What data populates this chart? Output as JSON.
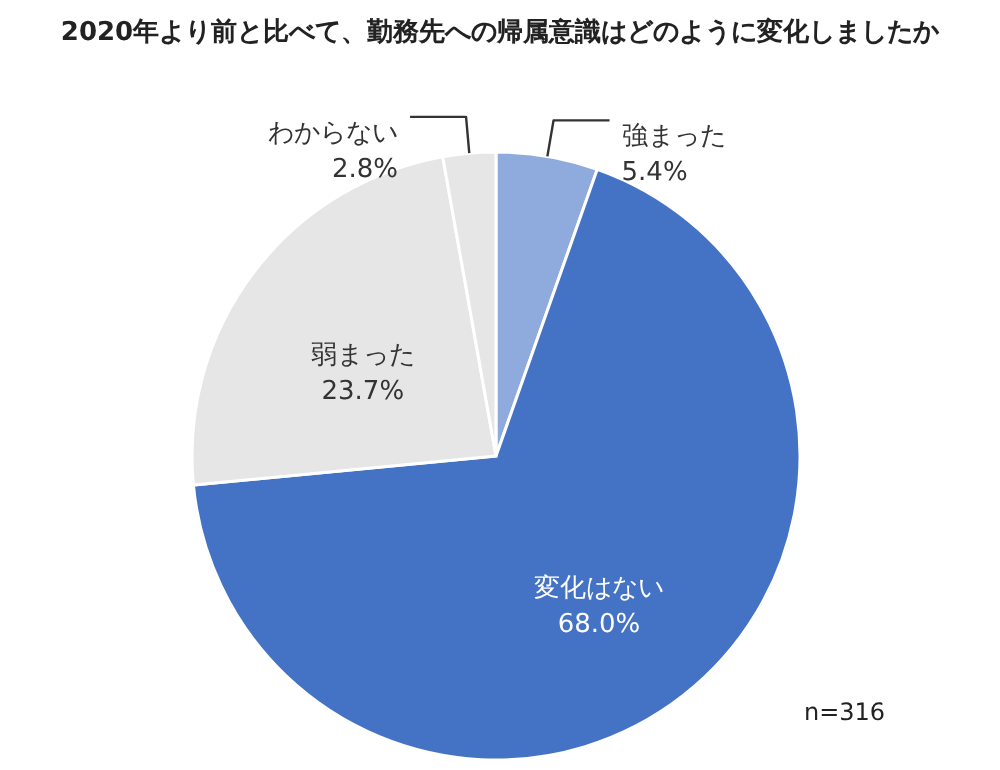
{
  "chart_data": {
    "type": "pie",
    "title": "2020年より前と比べて、勤務先への帰属意識はどのように変化しましたか",
    "categories": [
      "強まった",
      "変化はない",
      "弱まった",
      "わからない"
    ],
    "values": [
      5.4,
      68.0,
      23.7,
      2.8
    ],
    "value_labels": [
      "5.4%",
      "68.0%",
      "23.7%",
      "2.8%"
    ],
    "colors": [
      "#8faadc",
      "#4472c4",
      "#e7e6e6",
      "#e7e6e6"
    ],
    "annotations": [
      "n=316"
    ]
  }
}
